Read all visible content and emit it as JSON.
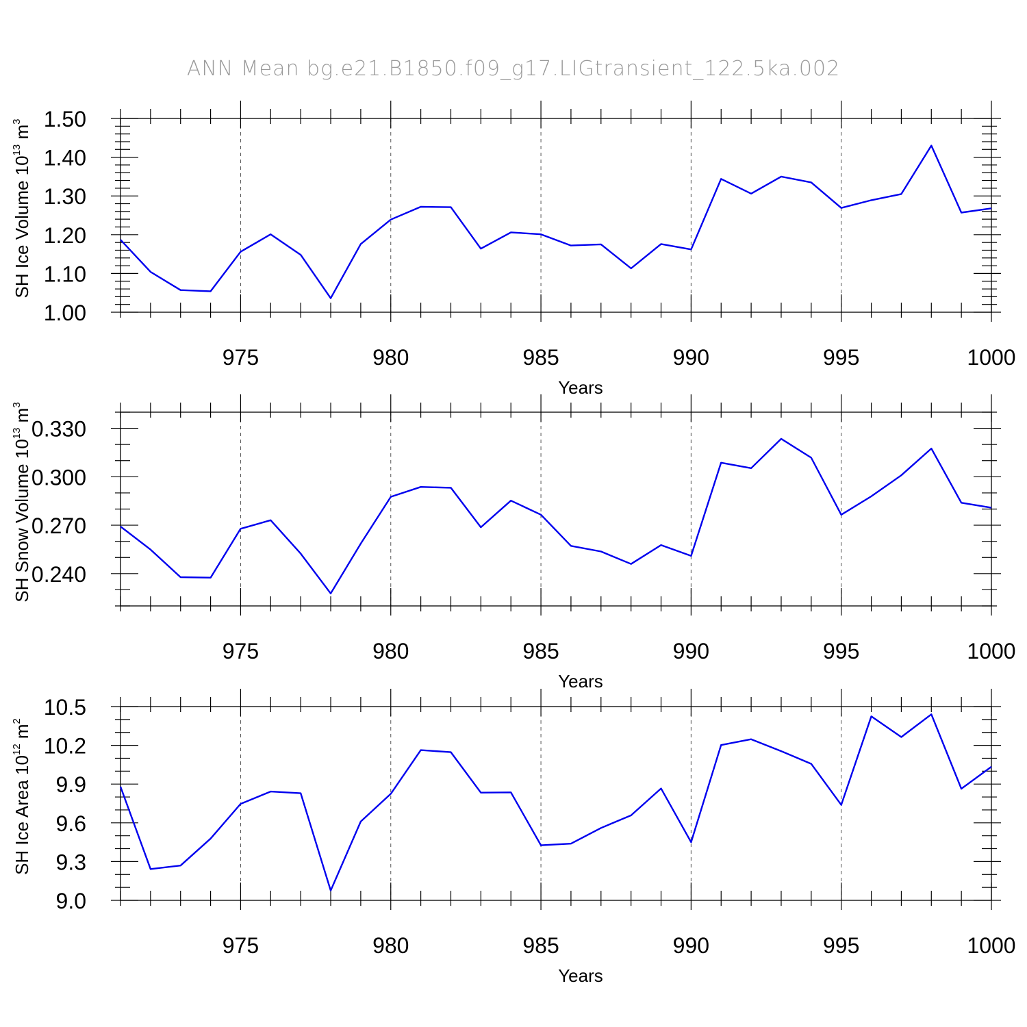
{
  "title": "ANN Mean bg.e21.B1850.f09_g17.LIGtransient_122.5ka.002",
  "line_color": "#0000ee",
  "chart_data": [
    {
      "type": "line",
      "ylabel": "SH Ice Volume",
      "ylabel_unit": "10",
      "ylabel_exp": "13",
      "ylabel_unit2": " m",
      "ylabel_unit2_exp": "3",
      "xlabel": "Years",
      "xlim": [
        971,
        1000
      ],
      "ylim": [
        1.0,
        1.5
      ],
      "xticks": [
        975,
        980,
        985,
        990,
        995,
        1000
      ],
      "yticks": [
        1.0,
        1.1,
        1.2,
        1.3,
        1.4,
        1.5
      ],
      "ytick_labels": [
        "1.00",
        "1.10",
        "1.20",
        "1.30",
        "1.40",
        "1.50"
      ],
      "ytick_minor_step": 0.02,
      "grid_x": true,
      "x": [
        971,
        972,
        973,
        974,
        975,
        976,
        977,
        978,
        979,
        980,
        981,
        982,
        983,
        984,
        985,
        986,
        987,
        988,
        989,
        990,
        991,
        992,
        993,
        994,
        995,
        996,
        997,
        998,
        999,
        1000
      ],
      "series": [
        {
          "values": [
            1.187,
            1.104,
            1.057,
            1.054,
            1.156,
            1.201,
            1.148,
            1.036,
            1.176,
            1.239,
            1.272,
            1.271,
            1.164,
            1.206,
            1.201,
            1.172,
            1.175,
            1.113,
            1.176,
            1.162,
            1.344,
            1.306,
            1.35,
            1.335,
            1.269,
            1.289,
            1.305,
            1.43,
            1.257,
            1.268
          ]
        }
      ]
    },
    {
      "type": "line",
      "ylabel": "SH Snow Volume",
      "ylabel_unit": "10",
      "ylabel_exp": "13",
      "ylabel_unit2": " m",
      "ylabel_unit2_exp": "3",
      "xlabel": "Years",
      "xlim": [
        971,
        1000
      ],
      "ylim": [
        0.22,
        0.34
      ],
      "xticks": [
        975,
        980,
        985,
        990,
        995,
        1000
      ],
      "yticks": [
        0.24,
        0.27,
        0.3,
        0.33
      ],
      "ytick_labels": [
        "0.240",
        "0.270",
        "0.300",
        "0.330"
      ],
      "ytick_minor_step": 0.01,
      "grid_x": true,
      "x": [
        971,
        972,
        973,
        974,
        975,
        976,
        977,
        978,
        979,
        980,
        981,
        982,
        983,
        984,
        985,
        986,
        987,
        988,
        989,
        990,
        991,
        992,
        993,
        994,
        995,
        996,
        997,
        998,
        999,
        1000
      ],
      "series": [
        {
          "values": [
            0.2692,
            0.2549,
            0.2378,
            0.2375,
            0.2678,
            0.2731,
            0.2524,
            0.2277,
            0.2586,
            0.2876,
            0.2937,
            0.2932,
            0.2687,
            0.2852,
            0.2765,
            0.2572,
            0.2537,
            0.246,
            0.2577,
            0.251,
            0.3087,
            0.3053,
            0.3235,
            0.3118,
            0.2765,
            0.2879,
            0.3009,
            0.3175,
            0.2839,
            0.2808
          ]
        }
      ]
    },
    {
      "type": "line",
      "ylabel": "SH Ice Area",
      "ylabel_unit": "10",
      "ylabel_exp": "12",
      "ylabel_unit2": " m",
      "ylabel_unit2_exp": "2",
      "xlabel": "Years",
      "xlim": [
        971,
        1000
      ],
      "ylim": [
        9.0,
        10.5
      ],
      "xticks": [
        975,
        980,
        985,
        990,
        995,
        1000
      ],
      "yticks": [
        9.0,
        9.3,
        9.6,
        9.9,
        10.2,
        10.5
      ],
      "ytick_labels": [
        "9.0",
        "9.3",
        "9.6",
        "9.9",
        "10.2",
        "10.5"
      ],
      "ytick_minor_step": 0.1,
      "grid_x": true,
      "x": [
        971,
        972,
        973,
        974,
        975,
        976,
        977,
        978,
        979,
        980,
        981,
        982,
        983,
        984,
        985,
        986,
        987,
        988,
        989,
        990,
        991,
        992,
        993,
        994,
        995,
        996,
        997,
        998,
        999,
        1000
      ],
      "series": [
        {
          "values": [
            9.88,
            9.242,
            9.269,
            9.478,
            9.747,
            9.842,
            9.829,
            9.076,
            9.61,
            9.825,
            10.163,
            10.147,
            9.834,
            9.836,
            9.426,
            9.439,
            9.56,
            9.658,
            9.866,
            9.45,
            10.202,
            10.247,
            10.155,
            10.057,
            9.739,
            10.424,
            10.264,
            10.44,
            9.864,
            10.034
          ]
        }
      ]
    }
  ]
}
